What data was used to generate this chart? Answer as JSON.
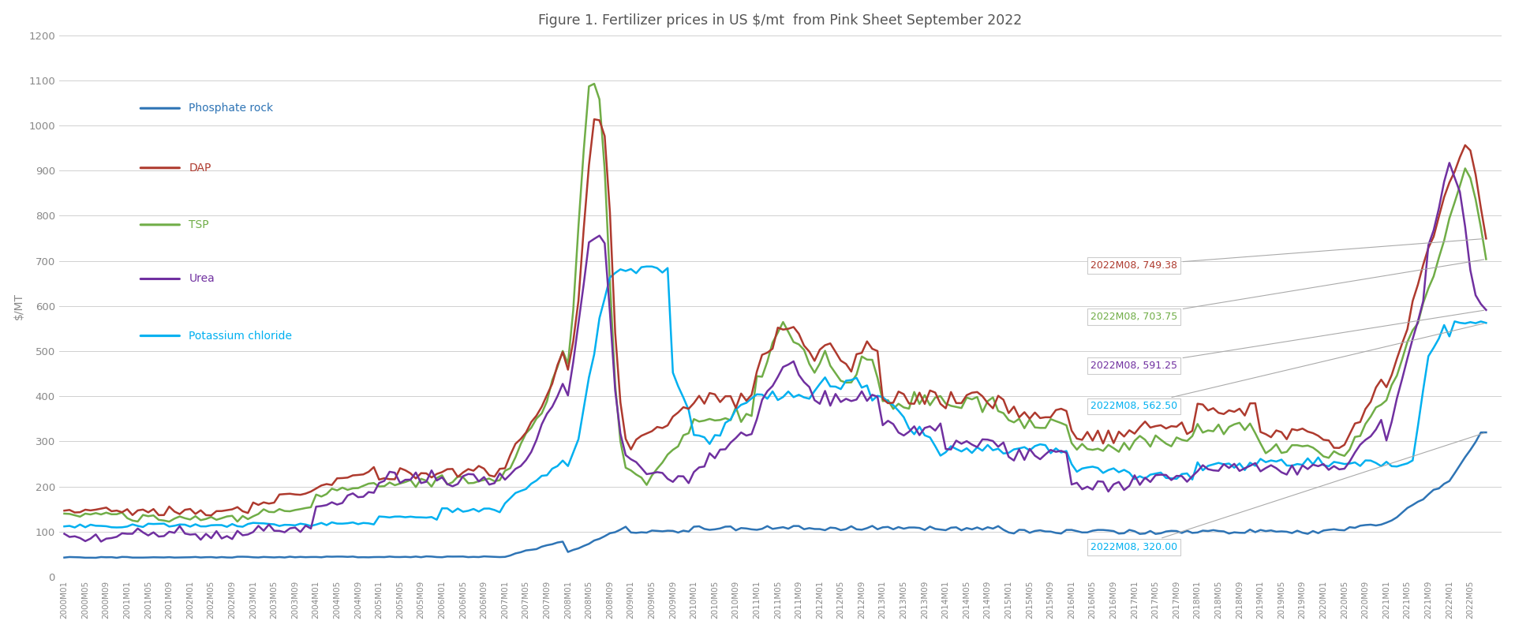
{
  "title": "Figure 1. Fertilizer prices in US $/mt  from Pink Sheet September 2022",
  "ylabel": "$/MT",
  "ylim": [
    0,
    1200
  ],
  "yticks": [
    0,
    100,
    200,
    300,
    400,
    500,
    600,
    700,
    800,
    900,
    1000,
    1100,
    1200
  ],
  "bg_color": "#ffffff",
  "grid_color": "#d0d0d0",
  "series": {
    "Phosphate rock": {
      "color": "#2e74b5",
      "linewidth": 1.8
    },
    "DAP": {
      "color": "#ae3a2e",
      "linewidth": 1.8
    },
    "TSP": {
      "color": "#70ad47",
      "linewidth": 1.8
    },
    "Urea": {
      "color": "#7030a0",
      "linewidth": 1.8
    },
    "Potassium chloride": {
      "color": "#00b0f0",
      "linewidth": 1.8
    }
  },
  "legend_items": [
    "Phosphate rock",
    "DAP",
    "TSP",
    "Urea",
    "Potassium chloride"
  ],
  "legend_colors": [
    "#2e74b5",
    "#ae3a2e",
    "#70ad47",
    "#7030a0",
    "#00b0f0"
  ],
  "ann_dap": {
    "label": "2022M08, 749.38",
    "color": "#ae3a2e"
  },
  "ann_tsp": {
    "label": "2022M08, 703.75",
    "color": "#70ad47"
  },
  "ann_urea": {
    "label": "2022M08, 591.25",
    "color": "#7030a0"
  },
  "ann_kcl": {
    "label": "2022M08, 562.50",
    "color": "#00b0f0"
  },
  "ann_prock": {
    "label": "2022M08, 320.00",
    "color": "#00b0f0"
  }
}
